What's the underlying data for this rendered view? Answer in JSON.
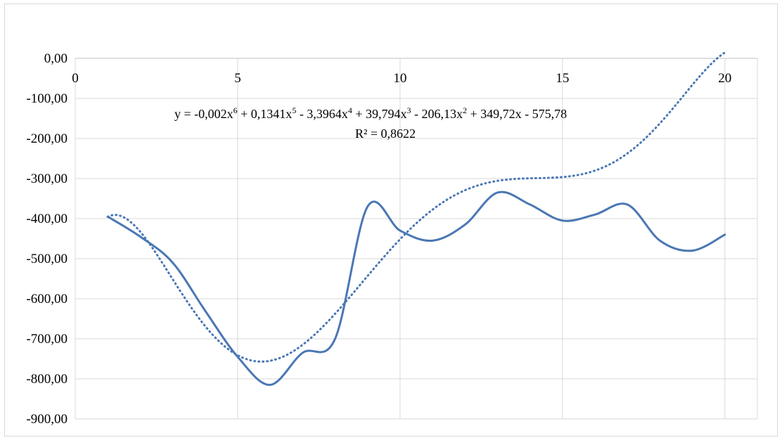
{
  "chart_data": {
    "type": "line",
    "title": "",
    "xlabel": "",
    "ylabel": "",
    "xlim": [
      0,
      21
    ],
    "ylim": [
      -900,
      0
    ],
    "x_ticks": [
      "0",
      "5",
      "10",
      "15",
      "20"
    ],
    "y_ticks": [
      "0,00",
      "-100,00",
      "-200,00",
      "-300,00",
      "-400,00",
      "-500,00",
      "-600,00",
      "-700,00",
      "-800,00",
      "-900,00"
    ],
    "grid": true,
    "legend": "none",
    "series": [
      {
        "style": "solid",
        "color": "#4a77b4",
        "x": [
          1,
          2,
          3,
          4,
          5,
          6,
          7,
          8,
          9,
          10,
          11,
          12,
          13,
          14,
          15,
          16,
          17,
          18,
          19,
          20
        ],
        "values": [
          -395,
          -445,
          -510,
          -630,
          -745,
          -815,
          -735,
          -700,
          -370,
          -430,
          -455,
          -415,
          -335,
          -365,
          -405,
          -390,
          -365,
          -455,
          -480,
          -440
        ]
      }
    ],
    "trendline": {
      "style": "dotted",
      "color": "#4a77b4",
      "type": "polynomial",
      "order": 6,
      "coefficients": [
        -0.002,
        0.1341,
        -3.3964,
        39.794,
        -206.13,
        349.72,
        -575.78
      ],
      "x_range": [
        1,
        20
      ],
      "equation_parts": {
        "p1": "y = -0,002x",
        "e1": "6",
        "p2": " + 0,1341x",
        "e2": "5",
        "p3": " - 3,3964x",
        "e3": "4",
        "p4": " + 39,794x",
        "e4": "3",
        "p5": " - 206,13x",
        "e5": "2",
        "p6": " + 349,72x - 575,78"
      },
      "r_squared_label": "R² = 0,8622"
    }
  }
}
